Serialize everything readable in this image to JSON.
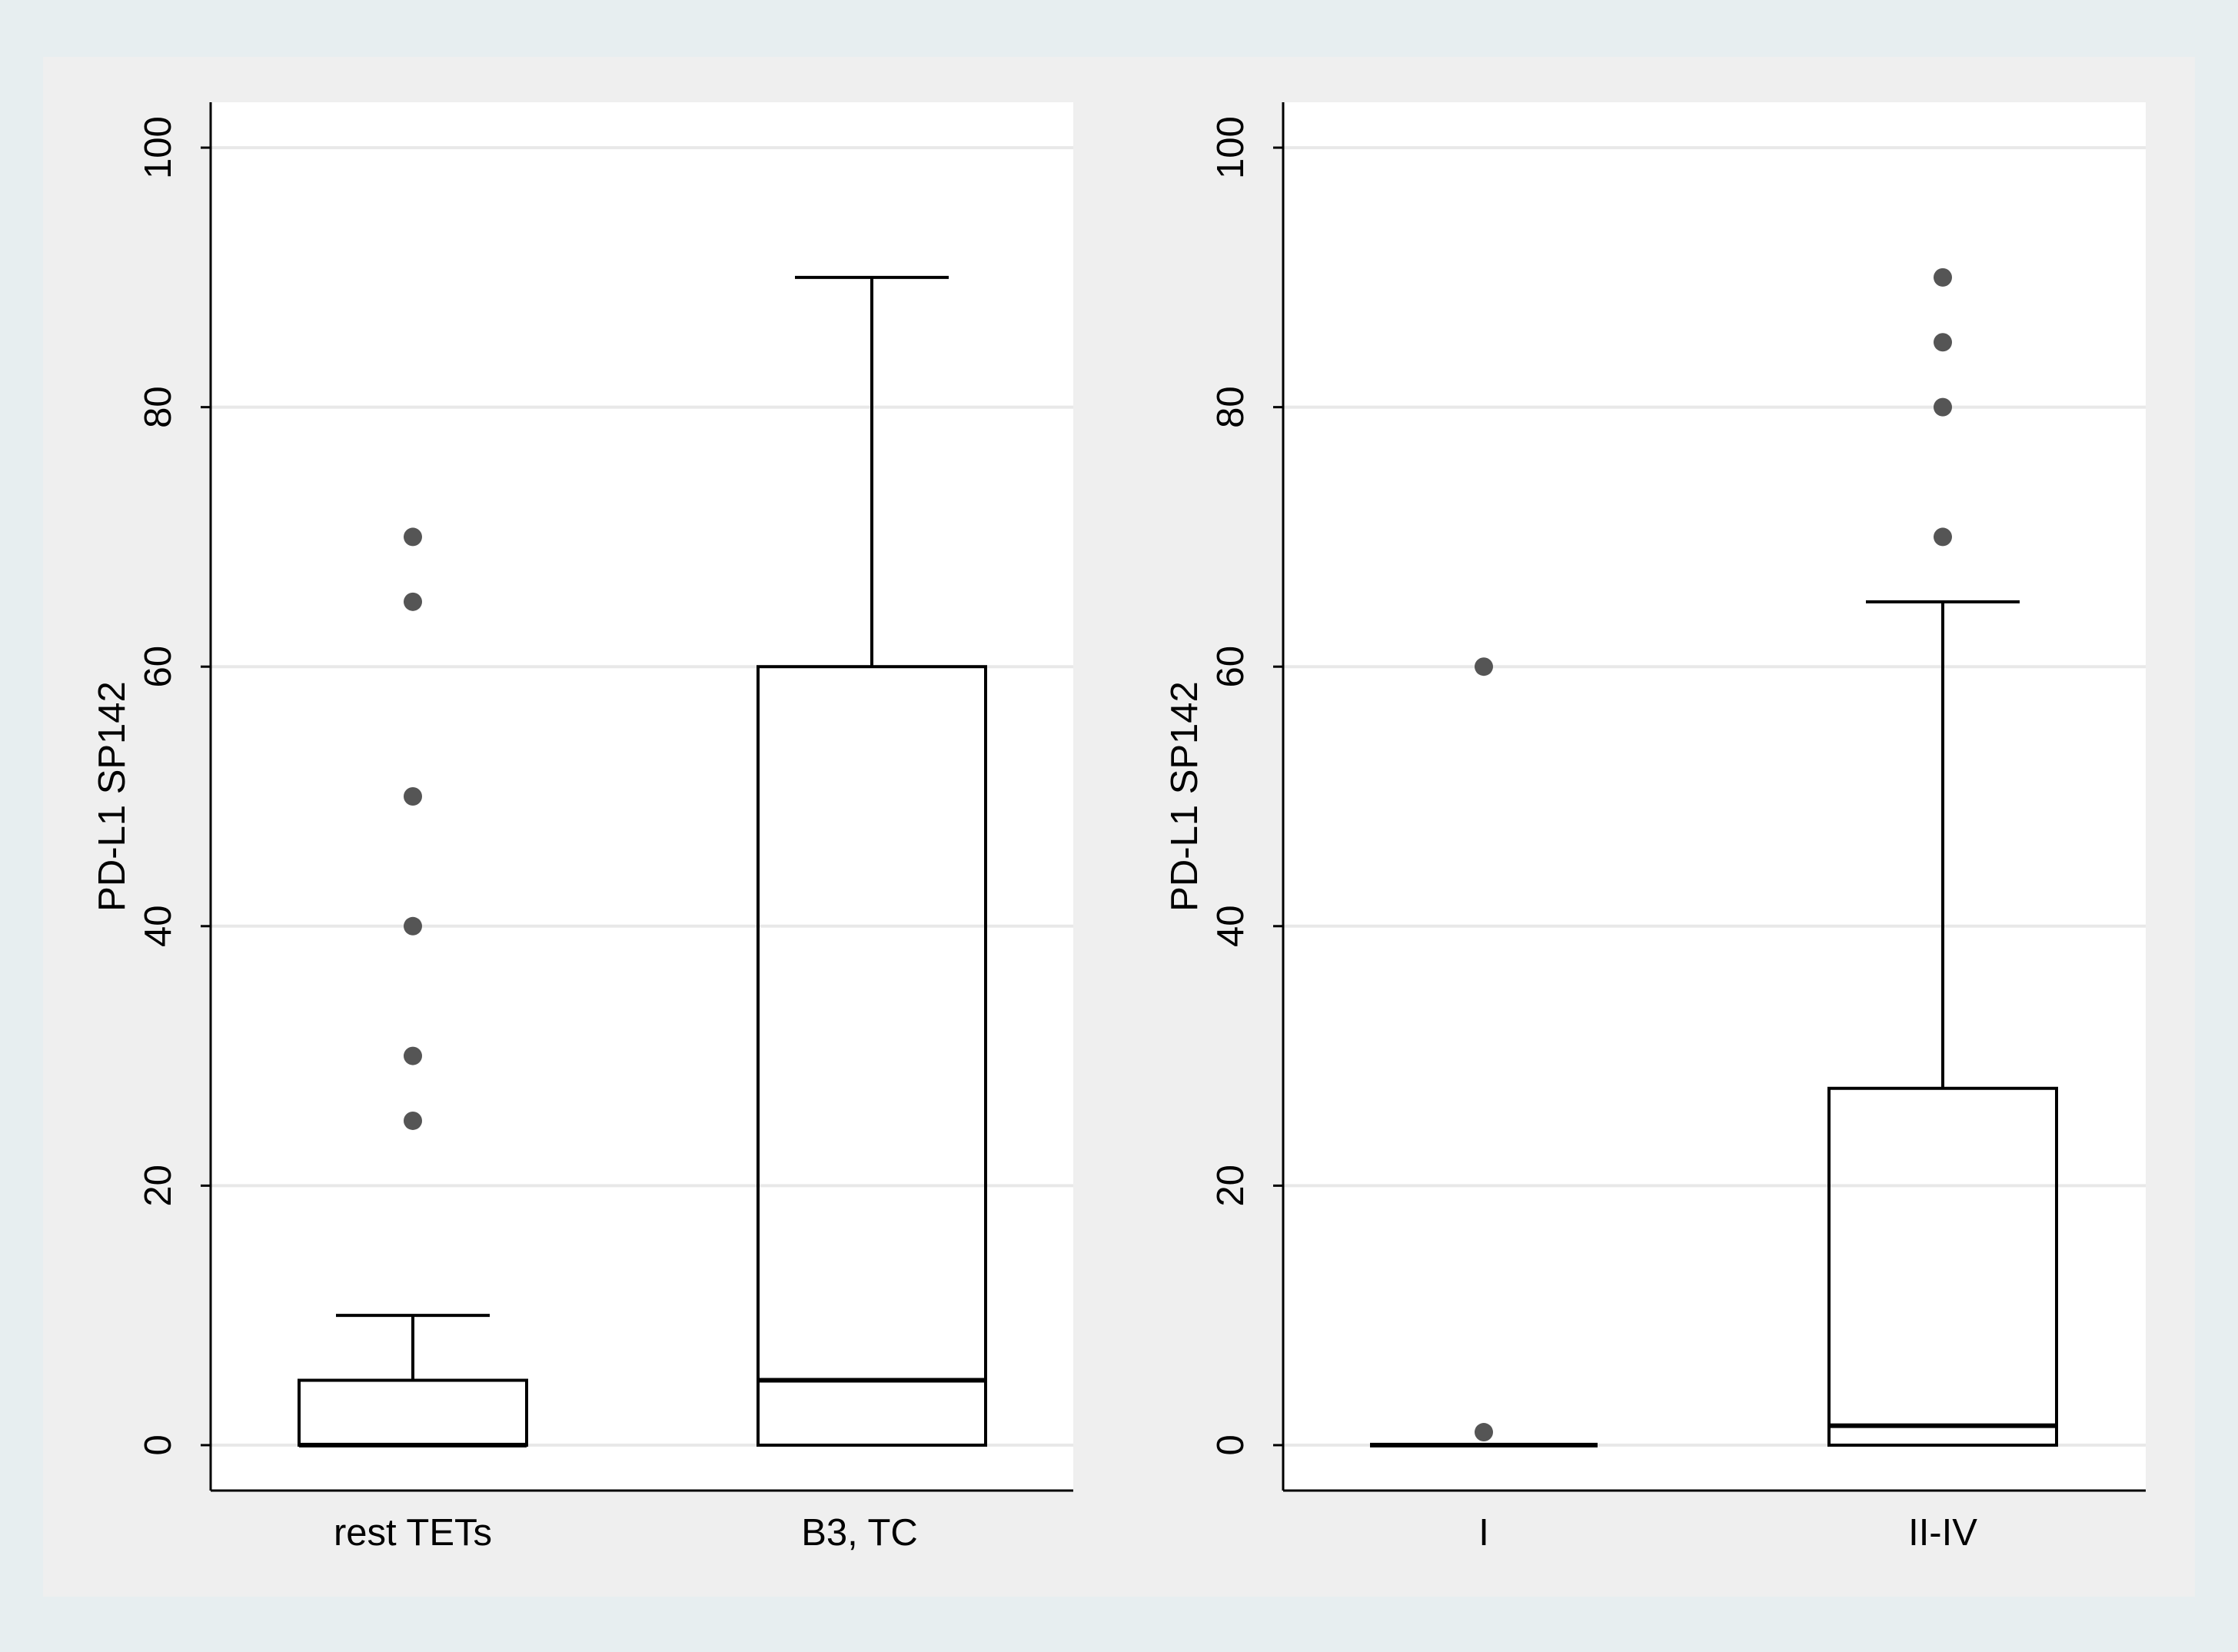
{
  "colors": {
    "outer_frame": "#e7eef0",
    "graph_region": "#efefef",
    "plot_region": "#ffffff",
    "grid": "#e8e8e8",
    "ink": "#000000",
    "outlier": "#555555"
  },
  "chart_data": [
    {
      "type": "box",
      "title": "",
      "xlabel": "",
      "ylabel": "PD-L1 SP142",
      "ylim": [
        -3.5,
        103.5
      ],
      "yticks": [
        0,
        20,
        40,
        60,
        80,
        100
      ],
      "ytick_labels": [
        "0",
        "20",
        "40",
        "60",
        "80",
        "100"
      ],
      "grid": true,
      "legend": "none",
      "categories": [
        "rest TETs",
        "B3, TC"
      ],
      "boxes": [
        {
          "category": "rest TETs",
          "min": 0,
          "q1": 0,
          "median": 0,
          "q3": 5,
          "max": 10,
          "outliers": [
            25,
            30,
            40,
            50,
            65,
            70
          ]
        },
        {
          "category": "B3, TC",
          "min": 0,
          "q1": 0,
          "median": 5,
          "q3": 60,
          "max": 90,
          "outliers": []
        }
      ]
    },
    {
      "type": "box",
      "title": "",
      "xlabel": "",
      "ylabel": "PD-L1 SP142",
      "ylim": [
        -3.5,
        103.5
      ],
      "yticks": [
        0,
        20,
        40,
        60,
        80,
        100
      ],
      "ytick_labels": [
        "0",
        "20",
        "40",
        "60",
        "80",
        "100"
      ],
      "grid": true,
      "legend": "none",
      "categories": [
        "I",
        "II-IV"
      ],
      "boxes": [
        {
          "category": "I",
          "min": 0,
          "q1": 0,
          "median": 0,
          "q3": 0,
          "max": 0,
          "outliers": [
            1,
            60
          ]
        },
        {
          "category": "II-IV",
          "min": 0,
          "q1": 0,
          "median": 1.5,
          "q3": 27.5,
          "max": 65,
          "outliers": [
            70,
            80,
            85,
            90
          ]
        }
      ]
    }
  ]
}
